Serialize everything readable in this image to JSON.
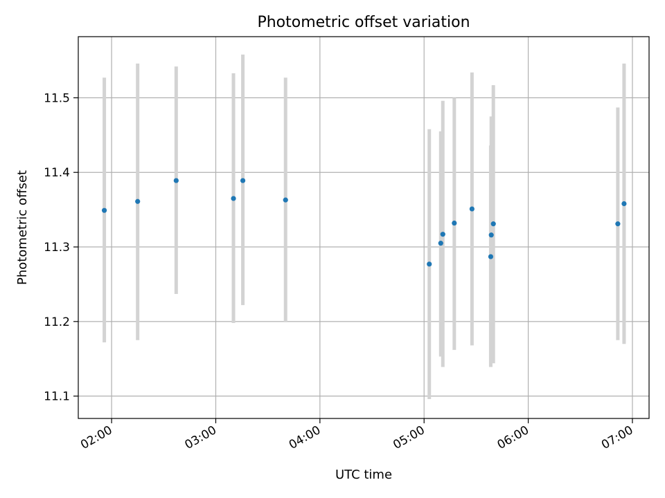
{
  "chart_data": {
    "type": "scatter",
    "title": "Photometric offset variation",
    "xlabel": "UTC time",
    "ylabel": "Photometric offset",
    "x_unit": "hours UTC",
    "xlim": [
      1.68,
      7.16
    ],
    "ylim": [
      11.07,
      11.582
    ],
    "x_ticks": [
      {
        "value": 2,
        "label": "02:00"
      },
      {
        "value": 3,
        "label": "03:00"
      },
      {
        "value": 4,
        "label": "04:00"
      },
      {
        "value": 5,
        "label": "05:00"
      },
      {
        "value": 6,
        "label": "06:00"
      },
      {
        "value": 7,
        "label": "07:00"
      }
    ],
    "y_ticks": [
      {
        "value": 11.1,
        "label": "11.1"
      },
      {
        "value": 11.2,
        "label": "11.2"
      },
      {
        "value": 11.3,
        "label": "11.3"
      },
      {
        "value": 11.4,
        "label": "11.4"
      },
      {
        "value": 11.5,
        "label": "11.5"
      }
    ],
    "grid": true,
    "point_color": "#1f77b4",
    "errorbar_color": "#d3d3d3",
    "points": [
      {
        "x": 1.93,
        "y": 11.349,
        "ylo": 11.172,
        "yhi": 11.527
      },
      {
        "x": 2.25,
        "y": 11.361,
        "ylo": 11.175,
        "yhi": 11.546
      },
      {
        "x": 2.62,
        "y": 11.389,
        "ylo": 11.237,
        "yhi": 11.542
      },
      {
        "x": 3.17,
        "y": 11.365,
        "ylo": 11.198,
        "yhi": 11.533
      },
      {
        "x": 3.26,
        "y": 11.389,
        "ylo": 11.222,
        "yhi": 11.558
      },
      {
        "x": 3.67,
        "y": 11.363,
        "ylo": 11.199,
        "yhi": 11.527
      },
      {
        "x": 5.05,
        "y": 11.277,
        "ylo": 11.096,
        "yhi": 11.458
      },
      {
        "x": 5.16,
        "y": 11.305,
        "ylo": 11.153,
        "yhi": 11.455
      },
      {
        "x": 5.18,
        "y": 11.317,
        "ylo": 11.139,
        "yhi": 11.496
      },
      {
        "x": 5.29,
        "y": 11.332,
        "ylo": 11.162,
        "yhi": 11.5
      },
      {
        "x": 5.46,
        "y": 11.351,
        "ylo": 11.168,
        "yhi": 11.534
      },
      {
        "x": 5.64,
        "y": 11.287,
        "ylo": 11.139,
        "yhi": 11.436
      },
      {
        "x": 5.645,
        "y": 11.316,
        "ylo": 11.156,
        "yhi": 11.475
      },
      {
        "x": 5.665,
        "y": 11.331,
        "ylo": 11.144,
        "yhi": 11.517
      },
      {
        "x": 6.86,
        "y": 11.331,
        "ylo": 11.175,
        "yhi": 11.487
      },
      {
        "x": 6.92,
        "y": 11.358,
        "ylo": 11.17,
        "yhi": 11.546
      }
    ]
  }
}
